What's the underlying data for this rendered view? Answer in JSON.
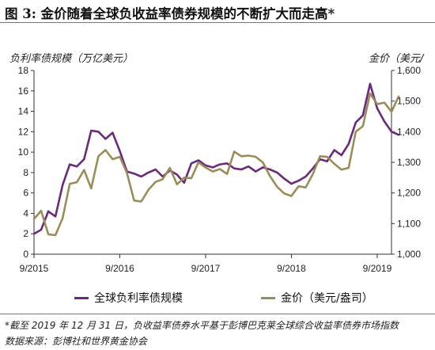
{
  "title": "图 3: 金价随着全球负收益率债券规模的不断扩大而走高*",
  "chart_data": {
    "type": "line",
    "ylabel_left": "负利率债规模（万亿美元）",
    "ylabel_right": "金价（美元/",
    "ylim_left": [
      0,
      18
    ],
    "ylim_right": [
      1000,
      1600
    ],
    "yticks_left": [
      "0",
      "2",
      "4",
      "6",
      "8",
      "10",
      "12",
      "14",
      "16",
      "18"
    ],
    "yticks_right": [
      "1,000",
      "1,100",
      "1,200",
      "1,300",
      "1,400",
      "1,500",
      "1,600"
    ],
    "xlim": [
      "2015-09",
      "2019-11"
    ],
    "xticks": [
      "9/2015",
      "9/2016",
      "9/2017",
      "9/2018",
      "9/2019"
    ],
    "grid": false,
    "legend_position": "bottom",
    "series": [
      {
        "name": "全球负利率债规模",
        "axis": "left",
        "color": "#6b2a7b",
        "x": [
          "2015-09",
          "2015-10",
          "2015-11",
          "2015-12",
          "2016-01",
          "2016-02",
          "2016-03",
          "2016-04",
          "2016-05",
          "2016-06",
          "2016-07",
          "2016-08",
          "2016-09",
          "2016-10",
          "2016-11",
          "2016-12",
          "2017-01",
          "2017-02",
          "2017-03",
          "2017-04",
          "2017-05",
          "2017-06",
          "2017-07",
          "2017-08",
          "2017-09",
          "2017-10",
          "2017-11",
          "2017-12",
          "2018-01",
          "2018-02",
          "2018-03",
          "2018-04",
          "2018-05",
          "2018-06",
          "2018-07",
          "2018-08",
          "2018-09",
          "2018-10",
          "2018-11",
          "2018-12",
          "2019-01",
          "2019-02",
          "2019-03",
          "2019-04",
          "2019-05",
          "2019-06",
          "2019-07",
          "2019-08",
          "2019-09",
          "2019-10",
          "2019-11",
          "2019-12"
        ],
        "values": [
          2.0,
          2.4,
          4.2,
          3.7,
          6.8,
          8.8,
          8.6,
          9.3,
          12.1,
          12.0,
          11.3,
          11.9,
          10.1,
          8.1,
          7.9,
          7.6,
          8.0,
          8.3,
          7.6,
          8.2,
          7.8,
          7.0,
          8.9,
          9.2,
          8.7,
          8.5,
          8.8,
          8.9,
          8.4,
          8.3,
          8.6,
          8.1,
          8.5,
          8.3,
          8.0,
          7.4,
          6.9,
          7.2,
          7.6,
          8.4,
          9.3,
          9.1,
          10.2,
          9.7,
          10.8,
          12.9,
          13.6,
          16.7,
          14.3,
          13.0,
          12.0,
          11.7
        ]
      },
      {
        "name": "金价（美元/盎司）",
        "axis": "right",
        "color": "#9b8d57",
        "x": [
          "2015-09",
          "2015-10",
          "2015-11",
          "2015-12",
          "2016-01",
          "2016-02",
          "2016-03",
          "2016-04",
          "2016-05",
          "2016-06",
          "2016-07",
          "2016-08",
          "2016-09",
          "2016-10",
          "2016-11",
          "2016-12",
          "2017-01",
          "2017-02",
          "2017-03",
          "2017-04",
          "2017-05",
          "2017-06",
          "2017-07",
          "2017-08",
          "2017-09",
          "2017-10",
          "2017-11",
          "2017-12",
          "2018-01",
          "2018-02",
          "2018-03",
          "2018-04",
          "2018-05",
          "2018-06",
          "2018-07",
          "2018-08",
          "2018-09",
          "2018-10",
          "2018-11",
          "2018-12",
          "2019-01",
          "2019-02",
          "2019-03",
          "2019-04",
          "2019-05",
          "2019-06",
          "2019-07",
          "2019-08",
          "2019-09",
          "2019-10",
          "2019-11",
          "2019-12"
        ],
        "values": [
          1115,
          1142,
          1065,
          1062,
          1118,
          1230,
          1235,
          1275,
          1215,
          1320,
          1340,
          1310,
          1318,
          1265,
          1175,
          1172,
          1210,
          1236,
          1245,
          1282,
          1228,
          1250,
          1248,
          1300,
          1283,
          1270,
          1278,
          1262,
          1335,
          1320,
          1322,
          1318,
          1300,
          1255,
          1220,
          1198,
          1190,
          1222,
          1218,
          1262,
          1320,
          1318,
          1295,
          1276,
          1282,
          1400,
          1418,
          1525,
          1490,
          1495,
          1465,
          1515
        ]
      }
    ]
  },
  "footnote": "*截至 2019 年 12 月 31 日，负收益率债券水平基于彭博巴克莱全球综合收益率债券市场指数",
  "source": "数据来源：彭博社和世界黄金协会"
}
